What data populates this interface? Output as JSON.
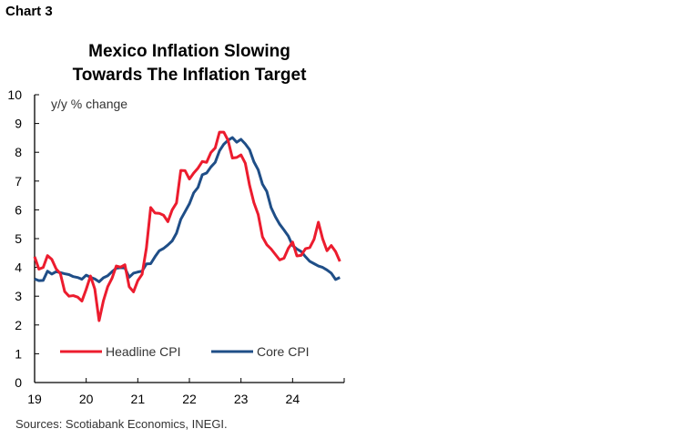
{
  "chart_label": "Chart 3",
  "chart_data": {
    "type": "line",
    "title": "Mexico Inflation Slowing\nTowards The Inflation Target",
    "ylabel": "y/y % change",
    "ylim": [
      0,
      10
    ],
    "yticks": [
      "0",
      "1",
      "2",
      "3",
      "4",
      "5",
      "6",
      "7",
      "8",
      "9",
      "10"
    ],
    "xlim": [
      2019,
      2025
    ],
    "xticks": [
      "19",
      "20",
      "21",
      "22",
      "23",
      "24"
    ],
    "frequency": "monthly",
    "start": "2019-01",
    "grid": false,
    "legend": "bottom-inside",
    "series": [
      {
        "name": "Headline CPI",
        "color": "#EC1C2E",
        "values": [
          4.37,
          3.94,
          4.0,
          4.41,
          4.28,
          3.95,
          3.78,
          3.16,
          3.0,
          3.02,
          2.97,
          2.83,
          3.24,
          3.7,
          3.25,
          2.15,
          2.84,
          3.33,
          3.62,
          4.05,
          4.01,
          4.09,
          3.33,
          3.15,
          3.54,
          3.76,
          4.67,
          6.08,
          5.89,
          5.88,
          5.81,
          5.59,
          6.0,
          6.24,
          7.37,
          7.36,
          7.07,
          7.28,
          7.45,
          7.68,
          7.65,
          7.99,
          8.15,
          8.7,
          8.7,
          8.41,
          7.8,
          7.82,
          7.91,
          7.62,
          6.85,
          6.25,
          5.84,
          5.06,
          4.79,
          4.64,
          4.45,
          4.26,
          4.32,
          4.66,
          4.88,
          4.4,
          4.42,
          4.65,
          4.69,
          4.98,
          5.57,
          4.99,
          4.58,
          4.76,
          4.55,
          4.21
        ]
      },
      {
        "name": "Core CPI",
        "color": "#1F4E87",
        "values": [
          3.6,
          3.54,
          3.55,
          3.87,
          3.77,
          3.85,
          3.82,
          3.78,
          3.75,
          3.68,
          3.65,
          3.59,
          3.73,
          3.66,
          3.6,
          3.5,
          3.64,
          3.71,
          3.85,
          3.97,
          3.99,
          3.98,
          3.66,
          3.8,
          3.84,
          3.87,
          4.12,
          4.13,
          4.37,
          4.58,
          4.66,
          4.78,
          4.92,
          5.19,
          5.67,
          5.94,
          6.21,
          6.59,
          6.78,
          7.22,
          7.28,
          7.49,
          7.65,
          8.05,
          8.28,
          8.42,
          8.51,
          8.35,
          8.45,
          8.29,
          8.09,
          7.67,
          7.39,
          6.89,
          6.64,
          6.08,
          5.76,
          5.5,
          5.3,
          5.09,
          4.76,
          4.64,
          4.55,
          4.37,
          4.21,
          4.13,
          4.05,
          4.0,
          3.91,
          3.8,
          3.58,
          3.65
        ]
      }
    ],
    "source": "Sources: Scotiabank Economics, INEGI."
  }
}
